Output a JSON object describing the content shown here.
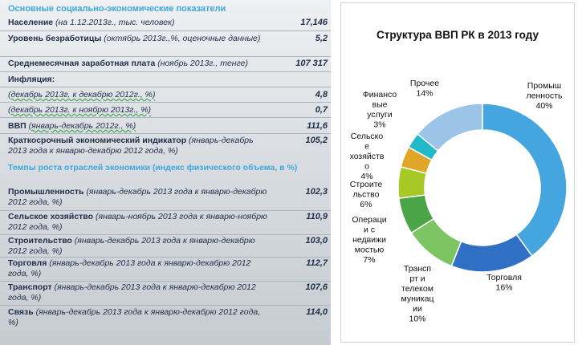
{
  "table": {
    "heading": "Основные социально-экономические показатели",
    "rows": [
      {
        "label": "Население",
        "note": "(на 1.12.2013г., тыс. человек)",
        "value": "17,146"
      },
      {
        "label": "Уровень безработицы",
        "note": "(октябрь 2013г.,%, оценочные данные)",
        "value": "5,2"
      },
      {
        "label": "Среднемесячная заработная плата",
        "note": "(ноябрь 2013г., тенге)",
        "value": "107 317"
      },
      {
        "label": "Инфляция:",
        "note": "",
        "value": ""
      },
      {
        "label": "",
        "note": "(декабрь 2013г. к декабрю 2012г., %)",
        "value": "4,8"
      },
      {
        "label": "",
        "note": "(декабрь 2013г. к ноябрю 2013г., %)",
        "value": "0,7"
      },
      {
        "label": "ВВП",
        "note": "(январь-декабрь 2012г., %)",
        "value": "111,6"
      },
      {
        "label": "Краткосрочный экономический индикатор",
        "note": "(январь-декабрь 2013 года к январю-декабрю 2012 года, %)",
        "value": "105,2"
      }
    ],
    "subheading": "Темпы роста отраслей экономики (индекс физического объема, в %)",
    "sector_rows": [
      {
        "label": "Промышленность",
        "note": "(январь-декабрь 2013 года к январю-декабрю 2012 года, %)",
        "value": "102,3"
      },
      {
        "label": "Сельское хозяйство",
        "note": "(январь-ноябрь 2013 года к январю-ноябрю 2012 года, %)",
        "value": "110,9"
      },
      {
        "label": "Строительство",
        "note": "(январь-декабрь 2013 года к январю-декабрю 2012 года, %)",
        "value": "103,0"
      },
      {
        "label": "Торговля",
        "note": "(январь-декабрь 2013 года к январю-декабрю 2012 года, %)",
        "value": "112,7"
      },
      {
        "label": "Транспорт",
        "note": "(январь-декабрь 2013 года к январю-декабрю 2012 года, %)",
        "value": "107,6"
      },
      {
        "label": "Связь",
        "note": "(январь-декабрь 2013 года к январю-декабрю 2012 года, %)",
        "value": "114,0"
      }
    ]
  },
  "chart_data": {
    "type": "pie",
    "title": "Структура ВВП РК в 2013 году",
    "unit": "%",
    "slices": [
      {
        "label": "Промышленность",
        "label_lines": [
          "Промыш",
          "ленность",
          "40%"
        ],
        "value": 40,
        "color": "#45a6df"
      },
      {
        "label": "Торговля",
        "label_lines": [
          "Торговля",
          "16%"
        ],
        "value": 16,
        "color": "#2f6fc4"
      },
      {
        "label": "Транспорт и телекоммуникации",
        "label_lines": [
          "Трансп",
          "рт и",
          "телеком",
          "муникац",
          "ии",
          "10%"
        ],
        "value": 10,
        "color": "#7dc563"
      },
      {
        "label": "Операции с недвижимостью",
        "label_lines": [
          "Операци",
          "и с",
          "недвижи",
          "мостью",
          "7%"
        ],
        "value": 7,
        "color": "#4aa547"
      },
      {
        "label": "Строительство",
        "label_lines": [
          "Строите",
          "льство",
          "6%"
        ],
        "value": 6,
        "color": "#a6c926"
      },
      {
        "label": "Сельское хозяйство",
        "label_lines": [
          "Сельско",
          "е",
          "хозяйств",
          "о",
          "4%"
        ],
        "value": 4,
        "color": "#e0a62a"
      },
      {
        "label": "Финансовые услуги",
        "label_lines": [
          "Финансо",
          "вые",
          "услуги",
          "3%"
        ],
        "value": 3,
        "color": "#1fb9c9"
      },
      {
        "label": "Прочее",
        "label_lines": [
          "Прочее",
          "14%"
        ],
        "value": 14,
        "color": "#9cc3e8"
      }
    ]
  }
}
